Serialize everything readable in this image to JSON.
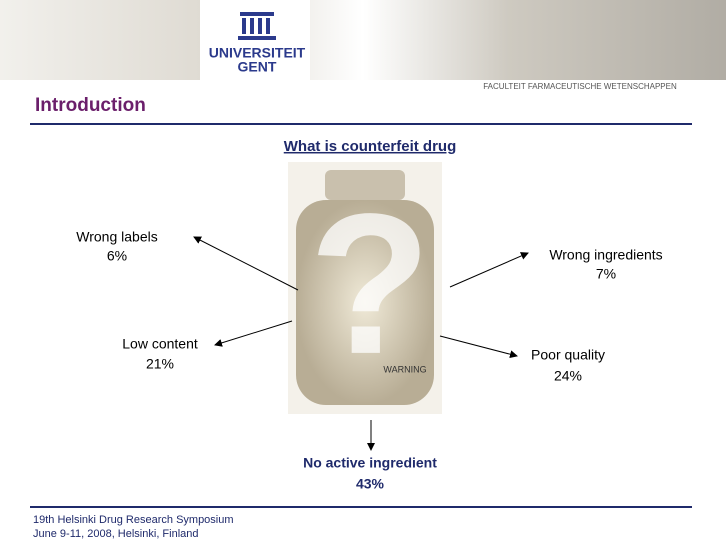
{
  "header": {
    "university": "UNIVERSITEIT",
    "city": "GENT",
    "faculty": "FACULTEIT FARMACEUTISCHE WETENSCHAPPEN"
  },
  "section_title": "Introduction",
  "subtitle": "What is counterfeit drug",
  "items": [
    {
      "label": "Wrong labels",
      "share": "6%"
    },
    {
      "label": "Wrong ingredients",
      "share": "7%"
    },
    {
      "label": "Low content",
      "share": "21%"
    },
    {
      "label": "Poor quality",
      "share": "24%"
    },
    {
      "label": "No active ingredient",
      "share": "43%"
    }
  ],
  "bottle_text": "WARNING",
  "footer": {
    "line1": "19th Helsinki Drug Research  Symposium",
    "line2": "June 9-11, 2008, Helsinki, Finland"
  }
}
